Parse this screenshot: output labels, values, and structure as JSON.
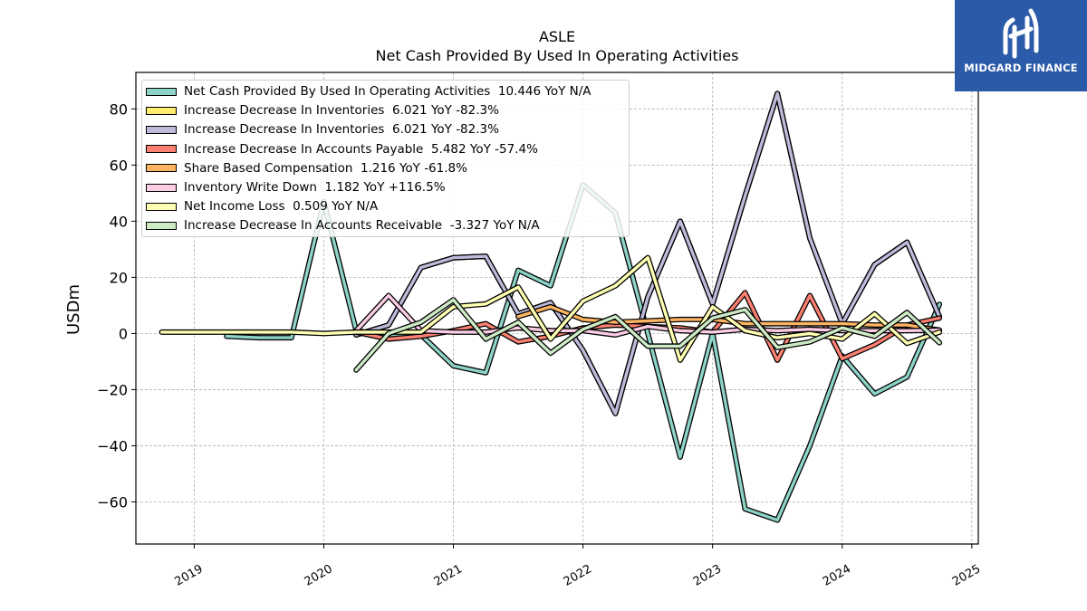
{
  "title": "ASLE",
  "subtitle": "Net Cash Provided By Used In Operating Activities",
  "logo": {
    "text": "MIDGARD FINANCE",
    "icon": "midgard-logo-icon",
    "background": "#2b5aa8"
  },
  "chart_data": {
    "type": "line",
    "ylabel": "USDm",
    "xlabel": "",
    "ylim": [
      -75,
      93
    ],
    "xlim": [
      2018.55,
      2025.05
    ],
    "yticks": [
      -60,
      -40,
      -20,
      0,
      20,
      40,
      60,
      80
    ],
    "ytick_labels": [
      "−60",
      "−40",
      "−20",
      "0",
      "20",
      "40",
      "60",
      "80"
    ],
    "xticks": [
      2019,
      2020,
      2021,
      2022,
      2023,
      2024,
      2025
    ],
    "xtick_labels": [
      "2019",
      "2020",
      "2021",
      "2022",
      "2023",
      "2024",
      "2025"
    ],
    "grid": true,
    "legend_position": "top-left",
    "series": [
      {
        "name": "Net Cash Provided By Used In Operating Activities",
        "legend": "Net Cash Provided By Used In Operating Activities  10.446 YoY N/A",
        "color": "#8dd3c7",
        "points": [
          [
            2019.25,
            -1.0
          ],
          [
            2019.5,
            -1.5
          ],
          [
            2019.75,
            -1.5
          ],
          [
            2020.0,
            47.0
          ],
          [
            2020.25,
            1.0
          ],
          [
            2020.5,
            -1.0
          ],
          [
            2020.75,
            -0.5
          ],
          [
            2021.0,
            -11.5
          ],
          [
            2021.25,
            -14.0
          ],
          [
            2021.5,
            22.5
          ],
          [
            2021.75,
            17.0
          ],
          [
            2022.0,
            53.0
          ],
          [
            2022.25,
            43.0
          ],
          [
            2022.5,
            0.0
          ],
          [
            2022.75,
            -44.0
          ],
          [
            2023.0,
            0.0
          ],
          [
            2023.25,
            -62.5
          ],
          [
            2023.5,
            -66.5
          ],
          [
            2023.75,
            -40.0
          ],
          [
            2024.0,
            -8.0
          ],
          [
            2024.25,
            -21.5
          ],
          [
            2024.5,
            -15.5
          ],
          [
            2024.75,
            10.4
          ]
        ]
      },
      {
        "name": "Increase Decrease In Inventories",
        "legend": "Increase Decrease In Inventories  6.021 YoY -82.3%",
        "color": "#ffed6f",
        "points": [
          [
            2020.25,
            -0.5
          ],
          [
            2020.5,
            3.0
          ],
          [
            2020.75,
            23.5
          ],
          [
            2021.0,
            27.0
          ],
          [
            2021.25,
            27.5
          ],
          [
            2021.5,
            7.0
          ],
          [
            2021.75,
            11.0
          ],
          [
            2022.0,
            -6.0
          ],
          [
            2022.25,
            -28.5
          ],
          [
            2022.5,
            13.0
          ],
          [
            2022.75,
            40.0
          ],
          [
            2023.0,
            10.5
          ],
          [
            2023.25,
            49.0
          ],
          [
            2023.5,
            85.5
          ],
          [
            2023.75,
            34.0
          ],
          [
            2024.0,
            3.5
          ],
          [
            2024.25,
            24.5
          ],
          [
            2024.5,
            32.5
          ],
          [
            2024.75,
            6.0
          ]
        ]
      },
      {
        "name": "Increase Decrease In Inventories",
        "legend": "Increase Decrease In Inventories  6.021 YoY -82.3%",
        "color": "#bebada",
        "points": [
          [
            2020.25,
            -0.5
          ],
          [
            2020.5,
            3.0
          ],
          [
            2020.75,
            23.5
          ],
          [
            2021.0,
            27.0
          ],
          [
            2021.25,
            27.5
          ],
          [
            2021.5,
            7.0
          ],
          [
            2021.75,
            11.0
          ],
          [
            2022.0,
            -6.0
          ],
          [
            2022.25,
            -28.5
          ],
          [
            2022.5,
            13.0
          ],
          [
            2022.75,
            40.0
          ],
          [
            2023.0,
            10.5
          ],
          [
            2023.25,
            49.0
          ],
          [
            2023.5,
            85.5
          ],
          [
            2023.75,
            34.0
          ],
          [
            2024.0,
            3.5
          ],
          [
            2024.25,
            24.5
          ],
          [
            2024.5,
            32.5
          ],
          [
            2024.75,
            6.0
          ]
        ]
      },
      {
        "name": "Increase Decrease In Accounts Payable",
        "legend": "Increase Decrease In Accounts Payable  5.482 YoY -57.4%",
        "color": "#fb8072",
        "points": [
          [
            2020.25,
            0.5
          ],
          [
            2020.5,
            -2.0
          ],
          [
            2020.75,
            -1.0
          ],
          [
            2021.0,
            1.0
          ],
          [
            2021.25,
            3.5
          ],
          [
            2021.5,
            -3.0
          ],
          [
            2021.75,
            -1.0
          ],
          [
            2022.0,
            2.0
          ],
          [
            2022.25,
            3.0
          ],
          [
            2022.5,
            2.5
          ],
          [
            2022.75,
            2.0
          ],
          [
            2023.0,
            0.5
          ],
          [
            2023.25,
            14.5
          ],
          [
            2023.5,
            -9.5
          ],
          [
            2023.75,
            13.5
          ],
          [
            2024.0,
            -9.0
          ],
          [
            2024.25,
            -4.0
          ],
          [
            2024.5,
            3.0
          ],
          [
            2024.75,
            5.5
          ]
        ]
      },
      {
        "name": "Share Based Compensation",
        "legend": "Share Based Compensation  1.216 YoY -61.8%",
        "color": "#fdb462",
        "points": [
          [
            2021.5,
            6.0
          ],
          [
            2021.75,
            9.5
          ],
          [
            2022.0,
            5.0
          ],
          [
            2022.25,
            4.0
          ],
          [
            2022.5,
            4.5
          ],
          [
            2022.75,
            5.0
          ],
          [
            2023.0,
            5.0
          ],
          [
            2023.25,
            3.5
          ],
          [
            2023.5,
            3.5
          ],
          [
            2023.75,
            3.5
          ],
          [
            2024.0,
            3.5
          ],
          [
            2024.25,
            3.0
          ],
          [
            2024.5,
            3.0
          ],
          [
            2024.75,
            1.2
          ]
        ]
      },
      {
        "name": "Inventory Write Down",
        "legend": "Inventory Write Down  1.182 YoY +116.5%",
        "color": "#fccde5",
        "points": [
          [
            2020.25,
            1.0
          ],
          [
            2020.5,
            13.5
          ],
          [
            2020.75,
            1.0
          ],
          [
            2021.0,
            0.5
          ],
          [
            2021.25,
            0.5
          ],
          [
            2021.5,
            2.0
          ],
          [
            2021.75,
            1.0
          ],
          [
            2022.0,
            1.0
          ],
          [
            2022.25,
            -0.5
          ],
          [
            2022.5,
            2.5
          ],
          [
            2022.75,
            1.0
          ],
          [
            2023.0,
            0.5
          ],
          [
            2023.25,
            1.5
          ],
          [
            2023.5,
            1.0
          ],
          [
            2023.75,
            1.5
          ],
          [
            2024.0,
            1.0
          ],
          [
            2024.25,
            1.0
          ],
          [
            2024.5,
            1.0
          ],
          [
            2024.75,
            1.2
          ]
        ]
      },
      {
        "name": "Net Income Loss",
        "legend": "Net Income Loss  0.509 YoY N/A",
        "color": "#ffffb3",
        "points": [
          [
            2018.75,
            0.5
          ],
          [
            2019.0,
            0.5
          ],
          [
            2019.25,
            0.5
          ],
          [
            2019.5,
            0.5
          ],
          [
            2019.75,
            0.5
          ],
          [
            2020.0,
            0.0
          ],
          [
            2020.25,
            0.5
          ],
          [
            2020.5,
            0.5
          ],
          [
            2020.75,
            0.5
          ],
          [
            2021.0,
            9.5
          ],
          [
            2021.25,
            10.5
          ],
          [
            2021.5,
            16.5
          ],
          [
            2021.75,
            -2.0
          ],
          [
            2022.0,
            11.5
          ],
          [
            2022.25,
            17.0
          ],
          [
            2022.5,
            27.0
          ],
          [
            2022.75,
            -9.5
          ],
          [
            2023.0,
            9.5
          ],
          [
            2023.25,
            1.0
          ],
          [
            2023.5,
            -1.5
          ],
          [
            2023.75,
            0.0
          ],
          [
            2024.0,
            -2.0
          ],
          [
            2024.25,
            7.0
          ],
          [
            2024.5,
            -3.5
          ],
          [
            2024.75,
            0.5
          ]
        ]
      },
      {
        "name": "Increase Decrease In Accounts Receivable",
        "legend": "Increase Decrease In Accounts Receivable  -3.327 YoY N/A",
        "color": "#ccebc5",
        "points": [
          [
            2020.25,
            -13.0
          ],
          [
            2020.5,
            0.0
          ],
          [
            2020.75,
            4.0
          ],
          [
            2021.0,
            12.0
          ],
          [
            2021.25,
            -2.0
          ],
          [
            2021.5,
            4.0
          ],
          [
            2021.75,
            -7.0
          ],
          [
            2022.0,
            1.5
          ],
          [
            2022.25,
            6.0
          ],
          [
            2022.5,
            -4.5
          ],
          [
            2022.75,
            -4.5
          ],
          [
            2023.0,
            5.5
          ],
          [
            2023.25,
            8.5
          ],
          [
            2023.5,
            -5.0
          ],
          [
            2023.75,
            -3.0
          ],
          [
            2024.0,
            2.0
          ],
          [
            2024.25,
            -1.0
          ],
          [
            2024.5,
            7.5
          ],
          [
            2024.75,
            -3.3
          ]
        ]
      }
    ]
  }
}
